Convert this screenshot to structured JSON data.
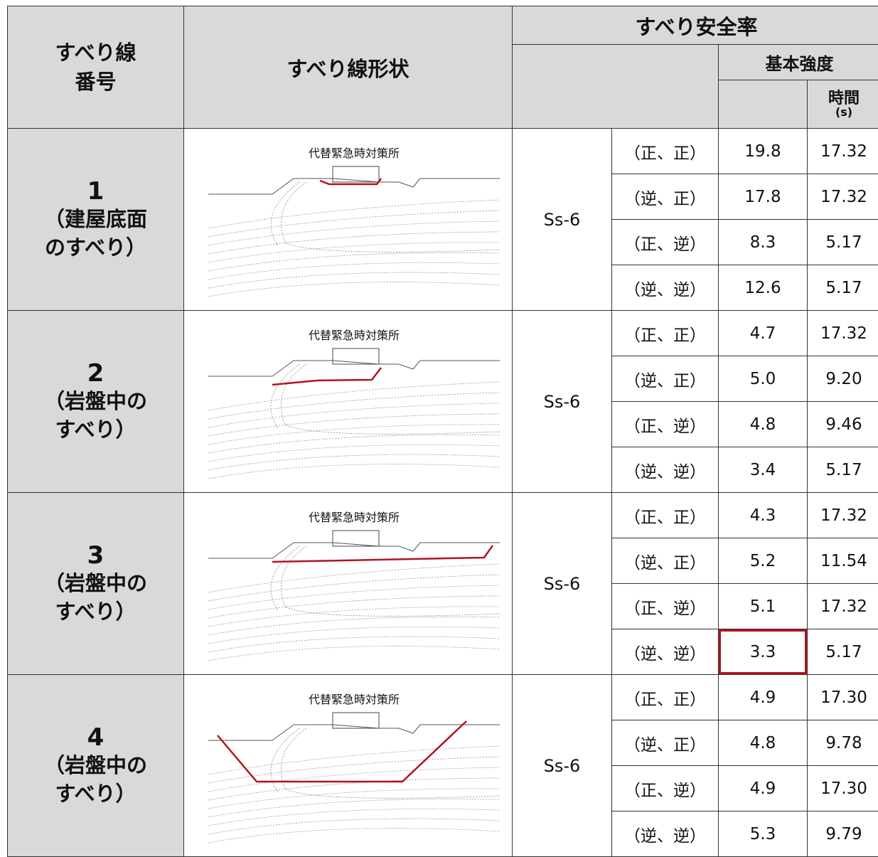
{
  "header": {
    "number": "すべり線番号",
    "shape": "すべり線形状",
    "safety_factor": "すべり安全率",
    "basic_strength": "基本強度",
    "time": "時間",
    "time_unit": "(s)"
  },
  "rows": [
    {
      "number": "1",
      "description": "（建屋底面のすべり）",
      "diagram_label": "代替緊急時対策所",
      "ground_motion": "Ss-6",
      "cases": [
        {
          "case": "（正、正）",
          "factor": "19.8",
          "time": "17.32"
        },
        {
          "case": "（逆、正）",
          "factor": "17.8",
          "time": "17.32"
        },
        {
          "case": "（正、逆）",
          "factor": "8.3",
          "time": "5.17"
        },
        {
          "case": "（逆、逆）",
          "factor": "12.6",
          "time": "5.17"
        }
      ]
    },
    {
      "number": "2",
      "description": "（岩盤中のすべり）",
      "diagram_label": "代替緊急時対策所",
      "ground_motion": "Ss-6",
      "cases": [
        {
          "case": "（正、正）",
          "factor": "4.7",
          "time": "17.32"
        },
        {
          "case": "（逆、正）",
          "factor": "5.0",
          "time": "9.20"
        },
        {
          "case": "（正、逆）",
          "factor": "4.8",
          "time": "9.46"
        },
        {
          "case": "（逆、逆）",
          "factor": "3.4",
          "time": "5.17"
        }
      ]
    },
    {
      "number": "3",
      "description": "（岩盤中のすべり）",
      "diagram_label": "代替緊急時対策所",
      "ground_motion": "Ss-6",
      "cases": [
        {
          "case": "（正、正）",
          "factor": "4.3",
          "time": "17.32"
        },
        {
          "case": "（逆、正）",
          "factor": "5.2",
          "time": "11.54"
        },
        {
          "case": "（正、逆）",
          "factor": "5.1",
          "time": "17.32"
        },
        {
          "case": "（逆、逆）",
          "factor": "3.3",
          "time": "5.17"
        }
      ]
    },
    {
      "number": "4",
      "description": "（岩盤中のすべり）",
      "diagram_label": "代替緊急時対策所",
      "ground_motion": "Ss-6",
      "cases": [
        {
          "case": "（正、正）",
          "factor": "4.9",
          "time": "17.30"
        },
        {
          "case": "（逆、正）",
          "factor": "4.8",
          "time": "9.78"
        },
        {
          "case": "（正、逆）",
          "factor": "4.9",
          "time": "17.30"
        },
        {
          "case": "（逆、逆）",
          "factor": "5.3",
          "time": "9.79"
        }
      ]
    }
  ]
}
